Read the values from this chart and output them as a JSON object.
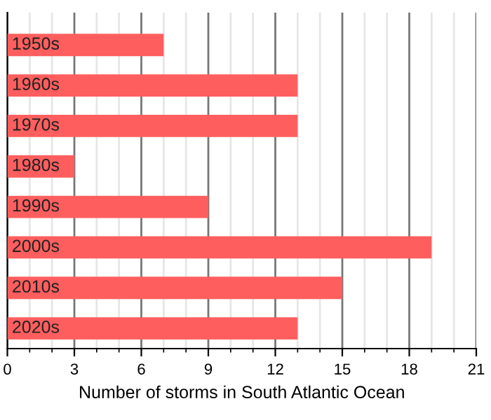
{
  "chart_data": {
    "type": "bar",
    "orientation": "horizontal",
    "xlabel": "Number of storms in South Atlantic Ocean",
    "categories": [
      "1950s",
      "1960s",
      "1970s",
      "1980s",
      "1990s",
      "2000s",
      "2010s",
      "2020s"
    ],
    "values": [
      7,
      13,
      13,
      3,
      9,
      19,
      15,
      13
    ],
    "color": "#ff5e5e",
    "xlim": [
      0,
      21
    ],
    "xticks": [
      0,
      {
        "value": 1,
        "label": null
      },
      {
        "value": 2,
        "label": null
      },
      3,
      {
        "value": 4,
        "label": null
      },
      {
        "value": 5,
        "label": null
      },
      6,
      {
        "value": 7,
        "label": null
      },
      {
        "value": 8,
        "label": null
      },
      9,
      {
        "value": 10,
        "label": null
      },
      {
        "value": 11,
        "label": null
      },
      12,
      {
        "value": 13,
        "label": null
      },
      {
        "value": 14,
        "label": null
      },
      15,
      {
        "value": 16,
        "label": null
      },
      {
        "value": 17,
        "label": null
      },
      18,
      {
        "value": 19,
        "label": null
      },
      {
        "value": 20,
        "label": null
      },
      21
    ],
    "grid": "x"
  }
}
